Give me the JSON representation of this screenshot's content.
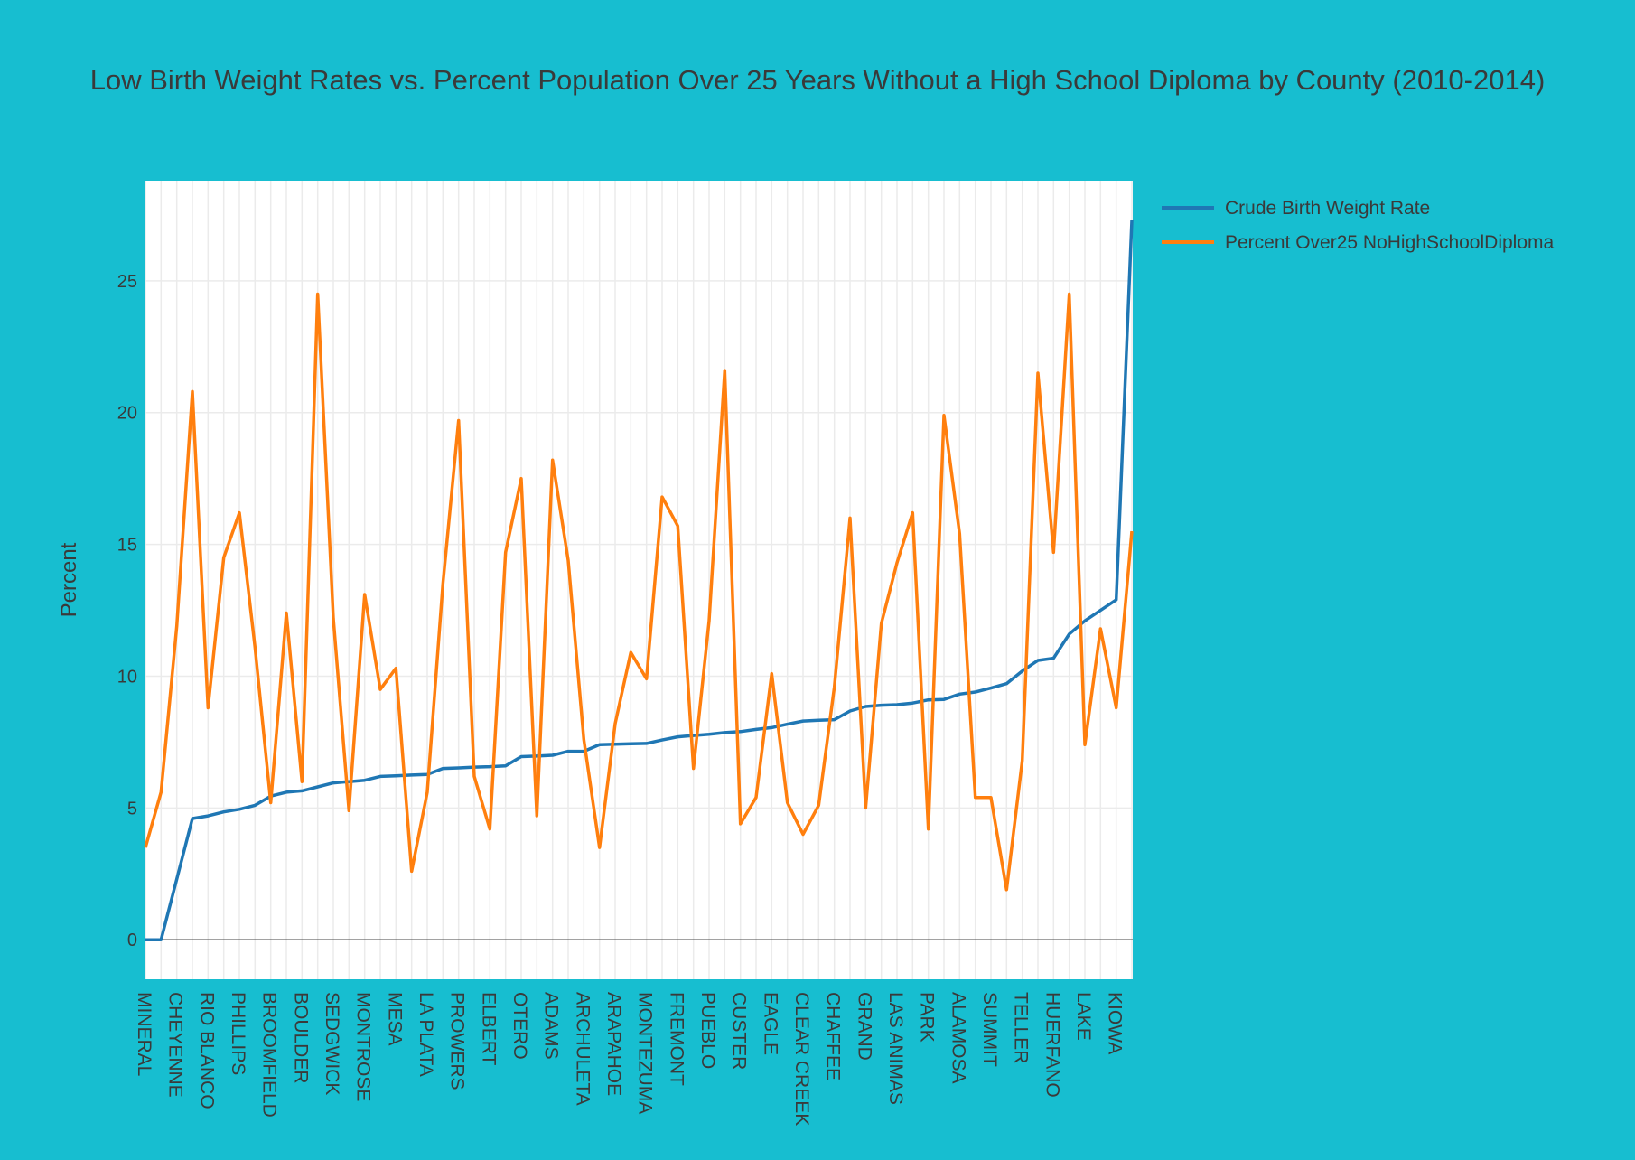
{
  "chart_data": {
    "type": "line",
    "title": "Low Birth Weight Rates vs. Percent Population Over 25 Years Without a High School Diploma by County (2010-2014)",
    "xlabel": "",
    "ylabel": "Percent",
    "ylim": [
      -1.5,
      28.8
    ],
    "yticks": [
      0,
      5,
      10,
      15,
      20,
      25
    ],
    "grid": true,
    "legend_position": "top-right",
    "x": [
      "MINERAL",
      "",
      "CHEYENNE",
      "",
      "RIO BLANCO",
      "",
      "PHILLIPS",
      "",
      "BROOMFIELD",
      "",
      "BOULDER",
      "",
      "SEDGWICK",
      "",
      "MONTROSE",
      "",
      "MESA",
      "",
      "LA PLATA",
      "",
      "PROWERS",
      "",
      "ELBERT",
      "",
      "OTERO",
      "",
      "ADAMS",
      "",
      "ARCHULETA",
      "",
      "ARAPAHOE",
      "",
      "MONTEZUMA",
      "",
      "FREMONT",
      "",
      "PUEBLO",
      "",
      "CUSTER",
      "",
      "EAGLE",
      "",
      "CLEAR CREEK",
      "",
      "CHAFFEE",
      "",
      "GRAND",
      "",
      "LAS ANIMAS",
      "",
      "PARK",
      "",
      "ALAMOSA",
      "",
      "SUMMIT",
      "",
      "TELLER",
      "",
      "HUERFANO",
      "",
      "LAKE",
      "",
      "KIOWA",
      ""
    ],
    "series": [
      {
        "name": "Crude Birth Weight Rate",
        "color": "#1f77b4",
        "values": [
          0,
          0,
          2.3,
          4.6,
          4.7,
          4.85,
          4.95,
          5.1,
          5.45,
          5.6,
          5.65,
          5.8,
          5.95,
          6.0,
          6.05,
          6.2,
          6.22,
          6.25,
          6.27,
          6.5,
          6.52,
          6.55,
          6.57,
          6.6,
          6.95,
          6.97,
          7.0,
          7.15,
          7.15,
          7.4,
          7.42,
          7.44,
          7.45,
          7.58,
          7.7,
          7.75,
          7.8,
          7.86,
          7.9,
          7.98,
          8.05,
          8.18,
          8.3,
          8.33,
          8.35,
          8.68,
          8.85,
          8.9,
          8.92,
          8.98,
          9.1,
          9.12,
          9.32,
          9.4,
          9.55,
          9.72,
          10.2,
          10.6,
          10.68,
          11.6,
          12.1,
          12.5,
          12.9,
          27.3
        ]
      },
      {
        "name": "Percent Over25 NoHighSchoolDiploma",
        "color": "#ff7f0e",
        "values": [
          3.5,
          5.6,
          11.9,
          20.8,
          8.8,
          14.5,
          16.2,
          11.1,
          5.2,
          12.4,
          6.0,
          24.5,
          12.2,
          4.9,
          13.1,
          9.5,
          10.3,
          2.6,
          5.6,
          13.5,
          19.7,
          6.2,
          4.2,
          14.7,
          17.5,
          4.7,
          18.2,
          14.4,
          7.6,
          3.5,
          8.2,
          10.9,
          9.9,
          16.8,
          15.7,
          6.5,
          12.1,
          21.6,
          4.4,
          5.4,
          10.1,
          5.2,
          4.0,
          5.1,
          9.6,
          16.0,
          5.0,
          12.0,
          14.3,
          16.2,
          4.2,
          19.9,
          15.4,
          5.4,
          5.4,
          1.9,
          6.8,
          21.5,
          14.7,
          24.5,
          7.4,
          11.8,
          8.8,
          15.5
        ]
      }
    ]
  }
}
